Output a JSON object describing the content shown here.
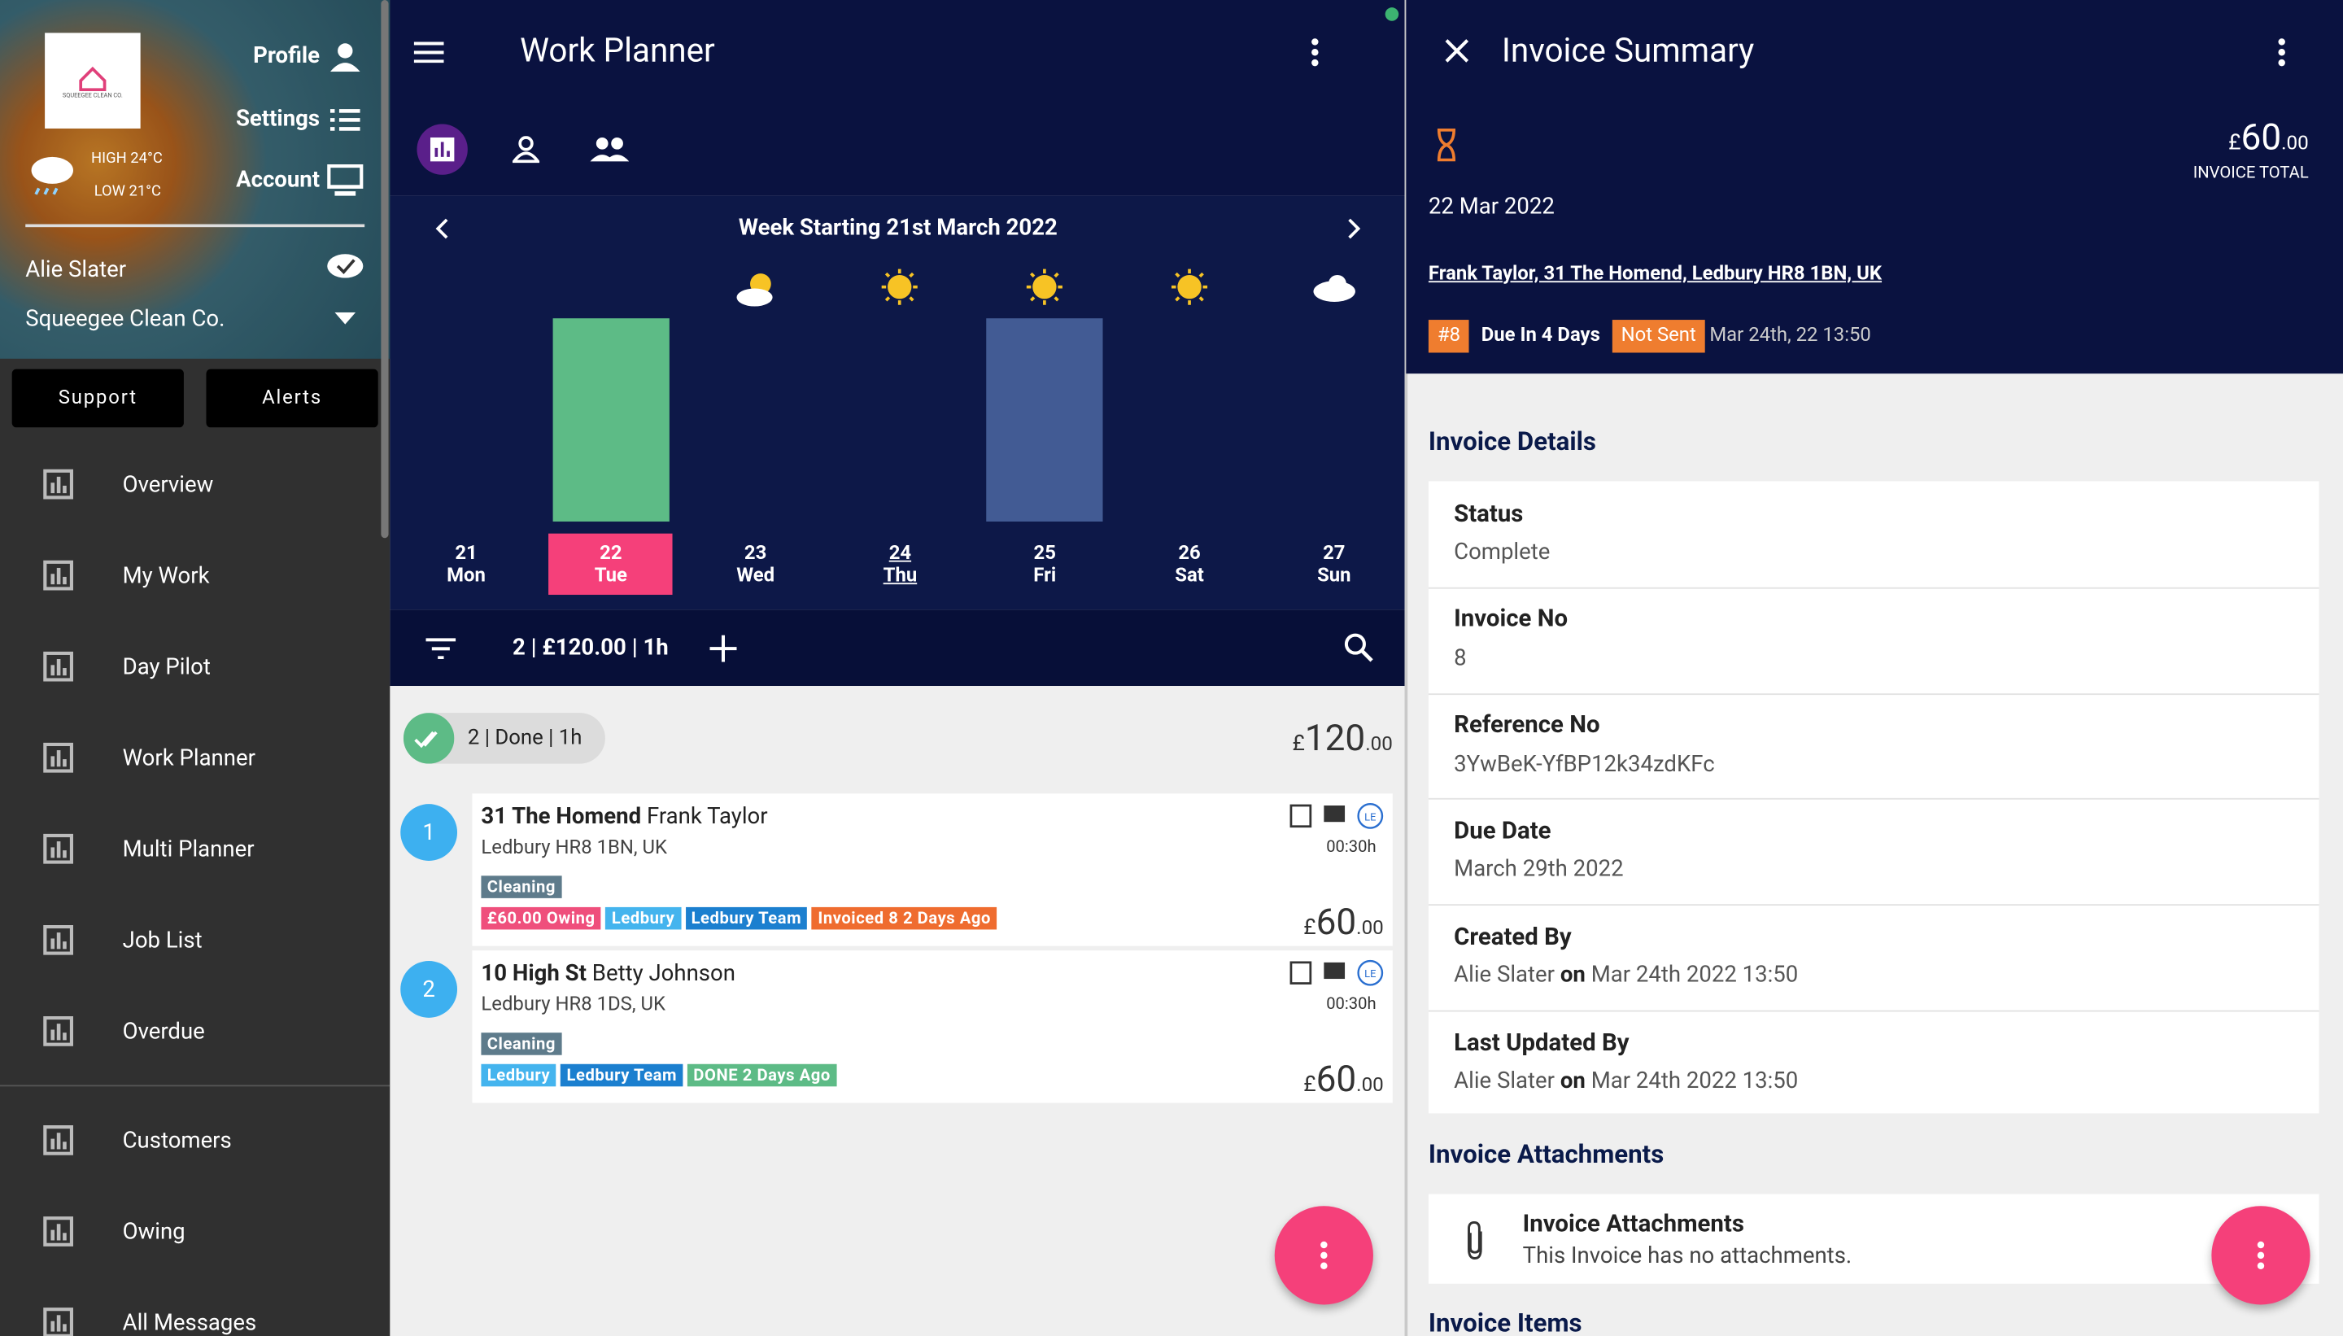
{
  "sidebar": {
    "logo_text": "SQUEEGEE CLEAN CO.",
    "profile": "Profile",
    "settings": "Settings",
    "account": "Account",
    "weather": {
      "high": "HIGH 24°C",
      "low": "LOW 21°C"
    },
    "user": "Alie Slater",
    "company": "Squeegee Clean Co.",
    "buttons": [
      "Support",
      "Alerts"
    ],
    "menu": [
      "Overview",
      "My Work",
      "Day Pilot",
      "Work Planner",
      "Multi Planner",
      "Job List",
      "Overdue"
    ],
    "menu_secondary": [
      "Customers",
      "Owing",
      "All Messages"
    ]
  },
  "planner": {
    "title": "Work Planner",
    "week": "Week Starting 21st March 2022",
    "days": [
      {
        "date": "21",
        "day": "Mon"
      },
      {
        "date": "22",
        "day": "Tue"
      },
      {
        "date": "23",
        "day": "Wed"
      },
      {
        "date": "24",
        "day": "Thu"
      },
      {
        "date": "25",
        "day": "Fri"
      },
      {
        "date": "26",
        "day": "Sat"
      },
      {
        "date": "27",
        "day": "Sun"
      }
    ],
    "chart": {
      "type": "bar",
      "values": [
        0,
        1,
        0,
        0,
        1,
        0,
        0
      ],
      "colors": [
        null,
        "#5dbb86",
        null,
        null,
        "#425b94",
        null,
        null
      ]
    },
    "weather": [
      null,
      null,
      "cloud-sun",
      "sun",
      "sun",
      "sun",
      "cloud"
    ],
    "selected_day": 1,
    "underlined_day": 3,
    "summary": "2 | £120.00 | 1h",
    "group": {
      "label": "2 | Done | 1h",
      "total": {
        "symbol": "£",
        "whole": "120",
        "fraction": ".00"
      }
    },
    "jobs": [
      {
        "number": "1",
        "street": "31 The Homend",
        "customer": "Frank Taylor",
        "address": "Ledbury HR8 1BN, UK",
        "duration": "00:30h",
        "service": "Cleaning",
        "tags": [
          {
            "text": "£60.00 Owing",
            "color": "#ef4f7c"
          },
          {
            "text": "Ledbury",
            "color": "#44b4ee"
          },
          {
            "text": "Ledbury Team",
            "color": "#1b7fcf"
          },
          {
            "text": "Invoiced 8 2 Days Ago",
            "color": "#ef6c2f"
          }
        ],
        "price": {
          "symbol": "£",
          "whole": "60",
          "fraction": ".00"
        }
      },
      {
        "number": "2",
        "street": "10 High St",
        "customer": "Betty Johnson",
        "address": "Ledbury HR8 1DS, UK",
        "duration": "00:30h",
        "service": "Cleaning",
        "tags": [
          {
            "text": "Ledbury",
            "color": "#44b4ee"
          },
          {
            "text": "Ledbury Team",
            "color": "#1b7fcf"
          },
          {
            "text": "DONE 2 Days Ago",
            "color": "#5dbb86"
          }
        ],
        "price": {
          "symbol": "£",
          "whole": "60",
          "fraction": ".00"
        }
      }
    ]
  },
  "invoice": {
    "title": "Invoice Summary",
    "total": {
      "symbol": "£",
      "whole": "60",
      "fraction": ".00"
    },
    "total_label": "INVOICE TOTAL",
    "date": "22 Mar 2022",
    "address": "Frank Taylor, 31 The Homend, Ledbury HR8 1BN, UK",
    "number_tag": "#8",
    "due": "Due In 4 Days",
    "sent_status": "Not Sent",
    "created": "Mar 24th, 22 13:50",
    "details_title": "Invoice Details",
    "details": [
      {
        "label": "Status",
        "value": "Complete"
      },
      {
        "label": "Invoice No",
        "value": "8"
      },
      {
        "label": "Reference No",
        "value": "3YwBeK-YfBP12k34zdKFc"
      },
      {
        "label": "Due Date",
        "value": "March 29th 2022"
      },
      {
        "label": "Created By",
        "value": "Alie Slater",
        "joiner": "on",
        "date": "Mar 24th 2022 13:50"
      },
      {
        "label": "Last Updated By",
        "value": "Alie Slater",
        "joiner": "on",
        "date": "Mar 24th 2022 13:50"
      }
    ],
    "attachments_title": "Invoice Attachments",
    "attachments_card": {
      "title": "Invoice Attachments",
      "text": "This Invoice has no attachments."
    },
    "items_title": "Invoice Items"
  }
}
